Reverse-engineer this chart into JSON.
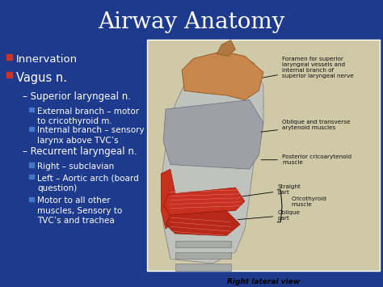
{
  "title": "Airway Anatomy",
  "background_color": "#1e3a8c",
  "title_color": "#ffffff",
  "title_fontsize": 20,
  "bullet_color": "#ffffff",
  "red_bullet_color": "#cc3322",
  "blue_bullet_color": "#4477cc",
  "bullet1": "Innervation",
  "bullet2": "Vagus n.",
  "sub1": "Superior laryngeal n.",
  "sub1a": "External branch – motor\nto cricothyroid m.",
  "sub1b": "Internal branch – sensory\nlarynx above TVC’s",
  "sub2": "Recurrent laryngeal n.",
  "sub2a": "Right – subclavian",
  "sub2b": "Left – Aortic arch (board\nquestion)",
  "sub2c": "Motor to all other\nmuscles, Sensory to\nTVC’s and trachea",
  "anatomy_label0": "Foramen for superior\nlaryngeal vessels and\ninternal branch of\nsuperior laryngeal nerve",
  "anatomy_label1": "Oblique and transverse\narytenoid muscles",
  "anatomy_label2": "Posterior cricoarytenoid\nmuscle",
  "anatomy_label3": "Straight\npart",
  "anatomy_label4": "Oblique\npart",
  "anatomy_label5": "Cricothyroid\nmuscle",
  "caption": "Right lateral view",
  "img_bg_color": "#cfc9a8",
  "img_border_color": "#ffffff",
  "cartilage_color": "#b8bab5",
  "cartilage_edge": "#888880",
  "brown_color": "#c8864a",
  "brown_edge": "#8a5a20",
  "red_muscle_color": "#c83020",
  "red_muscle_edge": "#881100",
  "gray_muscle_color": "#9898a0",
  "gray_muscle_edge": "#606068",
  "label_color": "#111111",
  "label_fs": 5.2,
  "caption_fs": 6.5
}
